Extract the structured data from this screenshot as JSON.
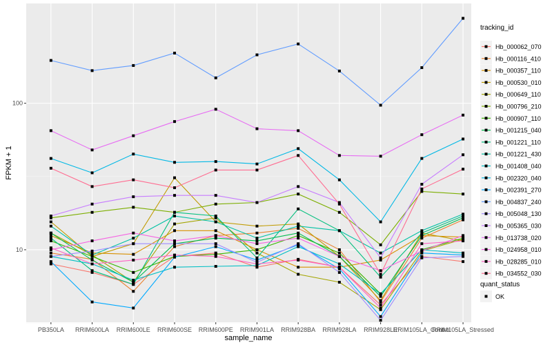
{
  "chart_data": {
    "type": "line",
    "xlabel": "sample_name",
    "ylabel": "FPKM + 1",
    "y_scale": "log10",
    "ylim": [
      3.2,
      480
    ],
    "y_ticks": [
      10,
      100
    ],
    "y_tick_labels": [
      "10",
      "100"
    ],
    "grid": true,
    "legend_position": "right",
    "categories": [
      "PB350LA",
      "RRIM600LA",
      "RRIM600LE",
      "RRIM600SE",
      "RRIM600PE",
      "RRIM901LA",
      "RRIM928BA",
      "RRIM928LA",
      "RRIM928LE",
      "RRIM105LA_Control",
      "RRIM105LA_Stressed"
    ],
    "category_labels": [
      "PB350LA",
      "RRIM600LA",
      "RRIM600LE",
      "RRIM600SE",
      "RRIM600PE",
      "RRIM901LA",
      "RRIM928BA",
      "RRIM928LA",
      "RRIM928LE",
      "RRIM105LA_Control",
      "RRIM105LA_Stressed"
    ],
    "legend_title": "tracking_id",
    "series": [
      {
        "name": "Hb_000062_070",
        "color": "#F8766D",
        "values": [
          8.0,
          7.0,
          5.8,
          9.0,
          9.5,
          7.6,
          8.6,
          7.6,
          4.2,
          9.0,
          8.3
        ]
      },
      {
        "name": "Hb_000116_410",
        "color": "#EA8331",
        "values": [
          9.5,
          8.6,
          5.2,
          10.5,
          12.5,
          13.0,
          14.0,
          10.0,
          4.4,
          12.0,
          16.0
        ]
      },
      {
        "name": "Hb_000357_110",
        "color": "#D89000",
        "values": [
          12.5,
          9.5,
          9.3,
          13.5,
          13.5,
          10.0,
          7.6,
          7.6,
          8.5,
          12.5,
          12.2
        ]
      },
      {
        "name": "Hb_000530_010",
        "color": "#C09B00",
        "values": [
          15.5,
          9.0,
          11.0,
          31.0,
          15.5,
          14.5,
          15.0,
          9.0,
          4.5,
          13.0,
          11.5
        ]
      },
      {
        "name": "Hb_000649_110",
        "color": "#A3A500",
        "values": [
          13.0,
          9.2,
          6.0,
          15.0,
          16.5,
          9.5,
          6.8,
          6.0,
          3.9,
          9.8,
          11.8
        ]
      },
      {
        "name": "Hb_000796_210",
        "color": "#7CAE00",
        "values": [
          16.5,
          18.0,
          19.5,
          18.0,
          20.5,
          21.0,
          24.0,
          18.0,
          10.8,
          25.0,
          24.0
        ]
      },
      {
        "name": "Hb_000907_110",
        "color": "#39B600",
        "values": [
          11.5,
          9.0,
          7.0,
          9.0,
          9.3,
          10.0,
          12.5,
          9.5,
          5.0,
          10.0,
          12.0
        ]
      },
      {
        "name": "Hb_001215_040",
        "color": "#00BB4E",
        "values": [
          13.0,
          8.5,
          6.0,
          11.0,
          12.0,
          11.5,
          13.0,
          9.0,
          4.8,
          12.5,
          16.5
        ]
      },
      {
        "name": "Hb_001221_110",
        "color": "#00BF7D",
        "values": [
          12.0,
          7.2,
          5.8,
          18.0,
          17.0,
          8.8,
          19.0,
          13.5,
          6.5,
          13.0,
          17.0
        ]
      },
      {
        "name": "Hb_001221_430",
        "color": "#00C1A3",
        "values": [
          14.5,
          9.2,
          12.0,
          17.0,
          15.5,
          12.0,
          14.5,
          13.5,
          9.5,
          13.5,
          17.5
        ]
      },
      {
        "name": "Hb_001408_040",
        "color": "#00BFC4",
        "values": [
          9.0,
          8.0,
          6.2,
          7.6,
          7.7,
          7.8,
          10.5,
          8.0,
          5.0,
          10.0,
          9.5
        ]
      },
      {
        "name": "Hb_002320_040",
        "color": "#00B8E5",
        "values": [
          42.0,
          33.5,
          45.0,
          39.5,
          40.0,
          38.5,
          49.0,
          30.0,
          15.5,
          42.0,
          57.0
        ]
      },
      {
        "name": "Hb_002391_270",
        "color": "#00A9FF",
        "values": [
          8.3,
          4.4,
          4.0,
          8.9,
          10.5,
          8.5,
          10.8,
          7.4,
          3.5,
          9.5,
          9.2
        ]
      },
      {
        "name": "Hb_004837_240",
        "color": "#619CFF",
        "values": [
          196.0,
          167.0,
          181.0,
          220.0,
          149.0,
          214.0,
          254.0,
          166.0,
          97.0,
          175.0,
          380.0
        ]
      },
      {
        "name": "Hb_005048_130",
        "color": "#9F8CFF",
        "values": [
          9.0,
          9.8,
          11.0,
          11.0,
          11.0,
          8.2,
          11.0,
          7.0,
          3.3,
          8.8,
          9.0
        ]
      },
      {
        "name": "Hb_005365_030",
        "color": "#C77CFF",
        "values": [
          17.0,
          20.5,
          23.0,
          23.5,
          23.5,
          21.0,
          27.0,
          21.0,
          8.8,
          28.0,
          44.5
        ]
      },
      {
        "name": "Hb_013738_020",
        "color": "#E76BF3",
        "values": [
          65.0,
          48.0,
          60.0,
          75.0,
          91.0,
          67.0,
          65.0,
          44.0,
          43.5,
          61.0,
          83.0
        ]
      },
      {
        "name": "Hb_024958_010",
        "color": "#F564E3",
        "values": [
          10.0,
          11.5,
          13.0,
          11.5,
          12.5,
          11.0,
          12.0,
          9.0,
          7.2,
          9.8,
          12.5
        ]
      },
      {
        "name": "Hb_028285_010",
        "color": "#FF61C3",
        "values": [
          10.3,
          8.0,
          8.5,
          9.2,
          9.0,
          8.0,
          8.5,
          7.6,
          4.0,
          11.0,
          11.5
        ]
      },
      {
        "name": "Hb_034552_030",
        "color": "#FF6C91",
        "values": [
          36.0,
          27.0,
          30.0,
          26.5,
          35.0,
          35.0,
          44.0,
          20.5,
          6.8,
          26.0,
          35.5
        ]
      }
    ],
    "legend2_title": "quant_status",
    "legend2_items": [
      {
        "label": "OK",
        "shape": "square"
      }
    ]
  }
}
